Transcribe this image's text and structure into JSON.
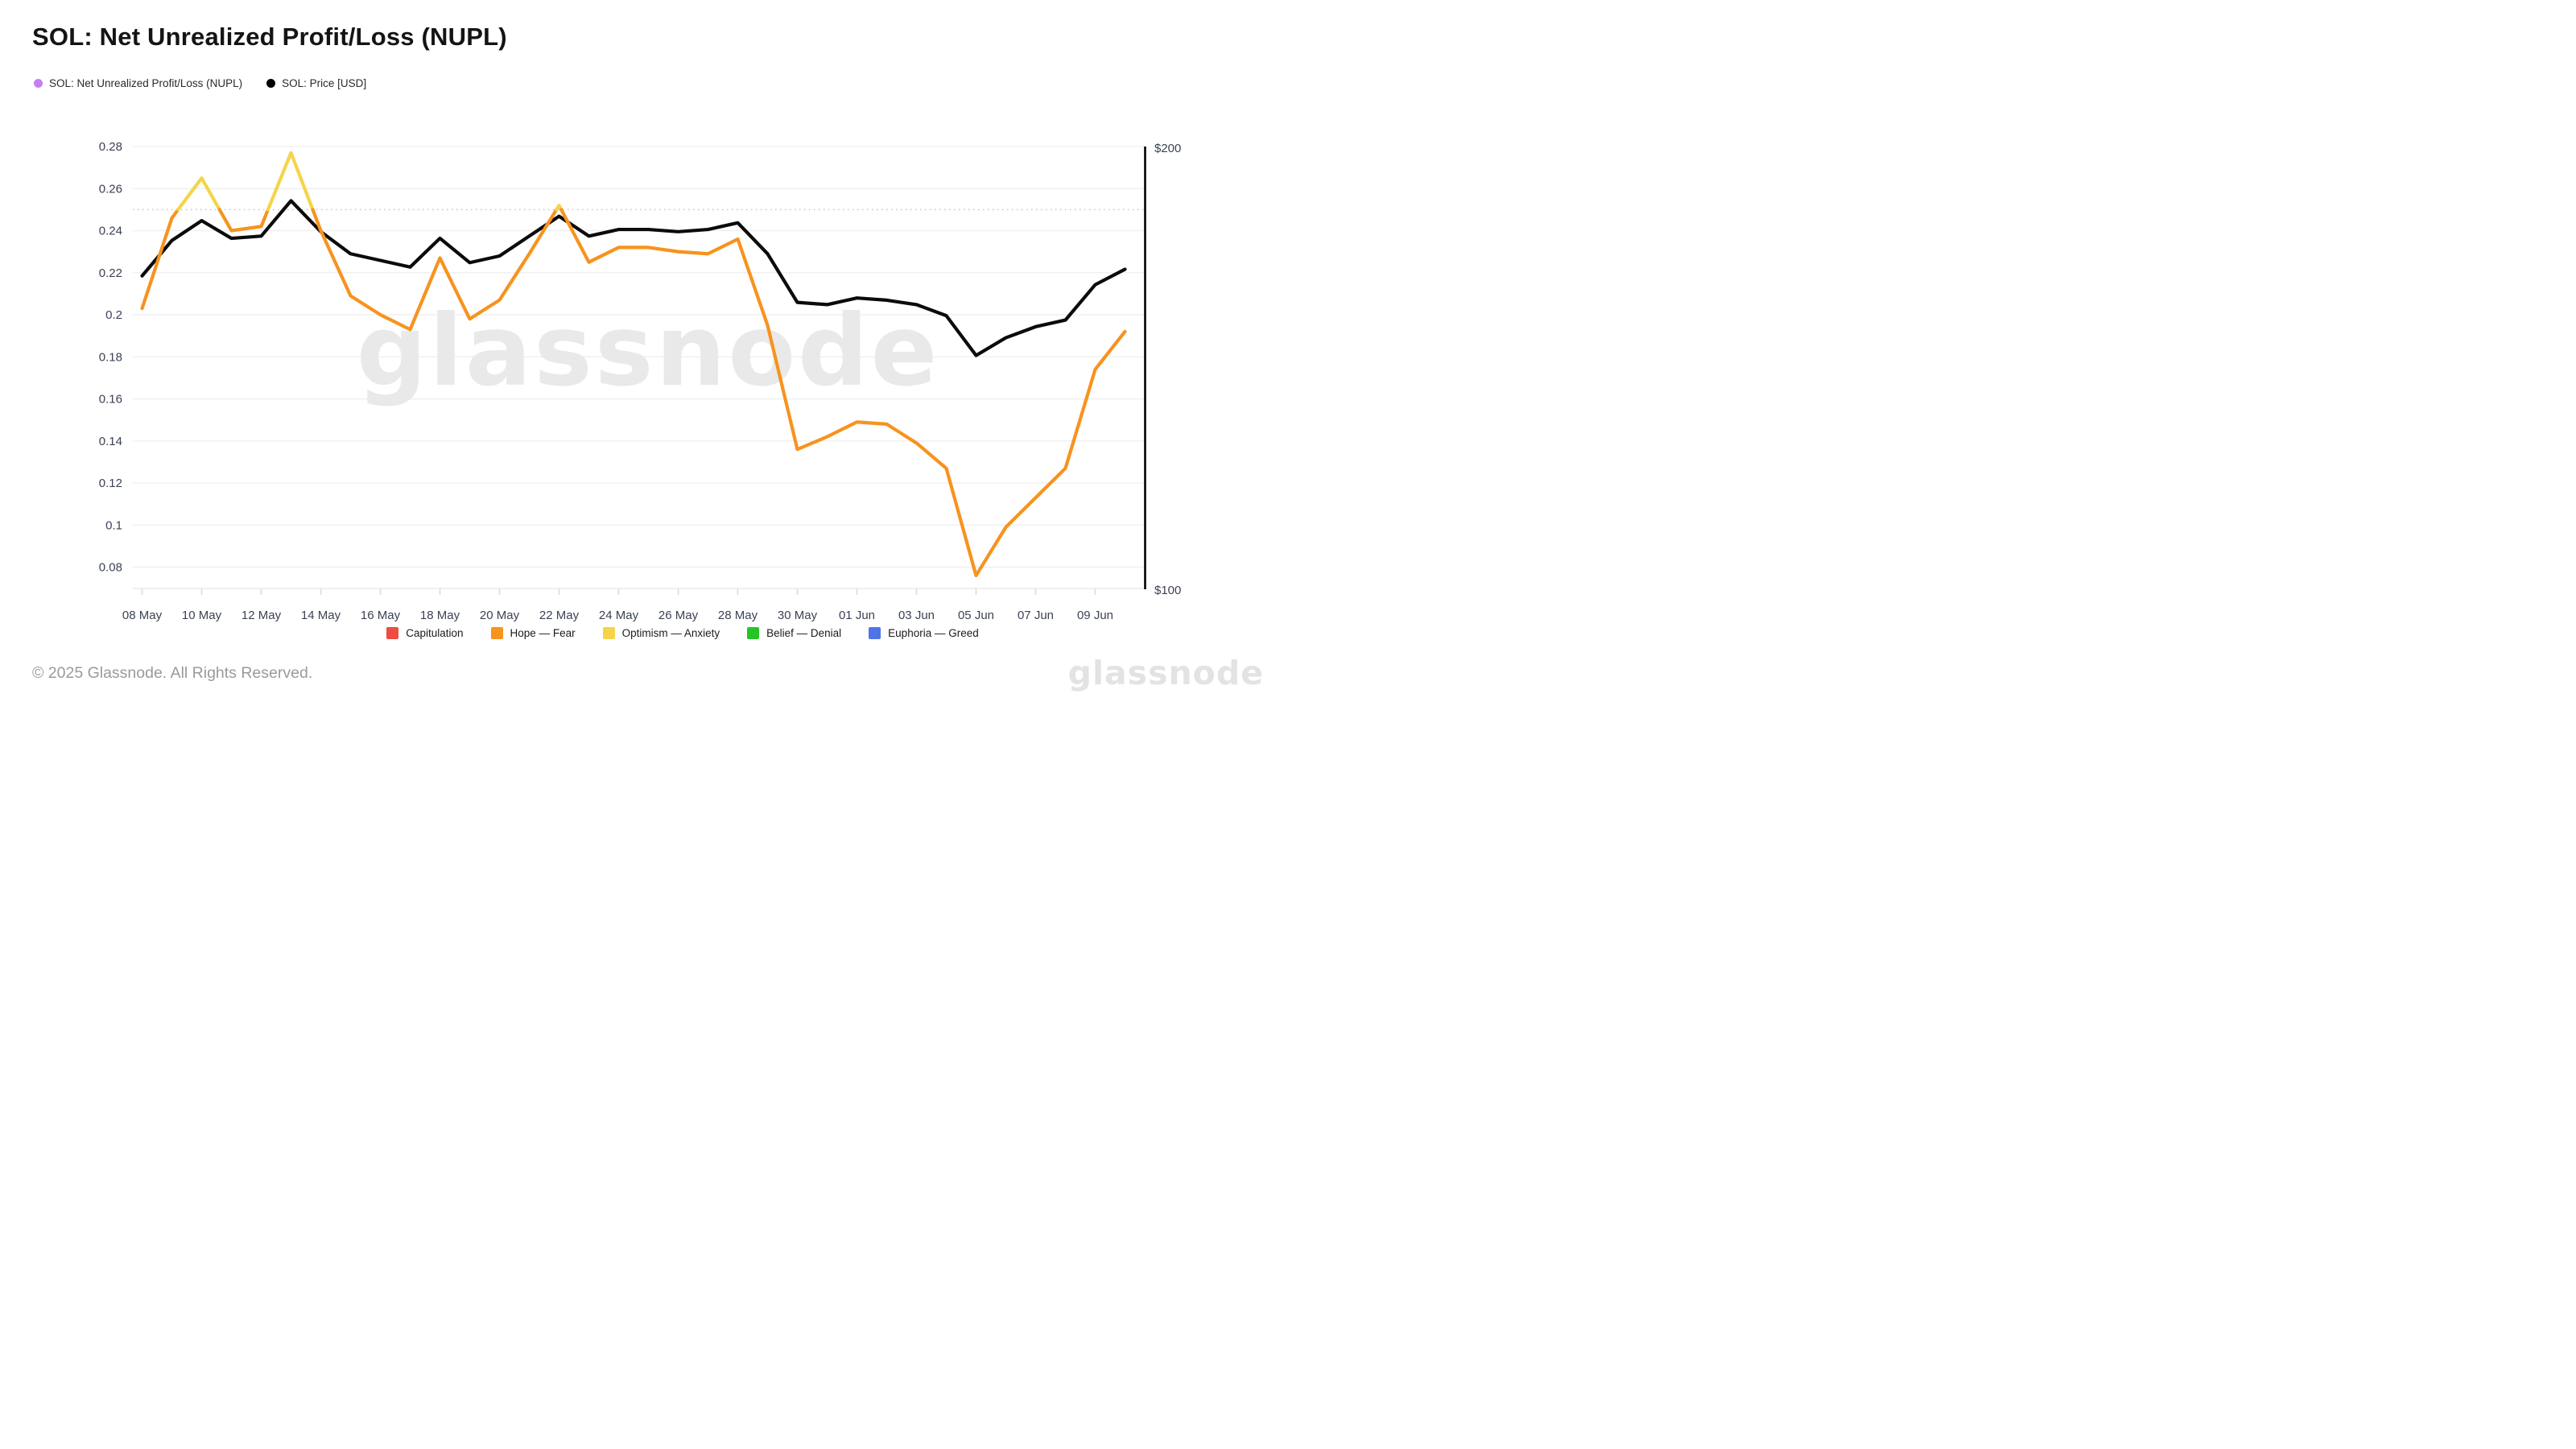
{
  "page": {
    "title": "SOL: Net Unrealized Profit/Loss (NUPL)"
  },
  "legend_top": [
    {
      "label": "SOL: Net Unrealized Profit/Loss (NUPL)",
      "color": "#C77EF2"
    },
    {
      "label": "SOL: Price [USD]",
      "color": "#000000"
    }
  ],
  "chart_data": {
    "type": "line",
    "title": "SOL: Net Unrealized Profit/Loss (NUPL)",
    "grid": "horizontal",
    "legend_position": "bottom",
    "watermark": "glassnode",
    "categories": [
      "08 May",
      "09 May",
      "10 May",
      "11 May",
      "12 May",
      "13 May",
      "14 May",
      "15 May",
      "16 May",
      "17 May",
      "18 May",
      "19 May",
      "20 May",
      "21 May",
      "22 May",
      "23 May",
      "24 May",
      "25 May",
      "26 May",
      "27 May",
      "28 May",
      "29 May",
      "30 May",
      "31 May",
      "01 Jun",
      "02 Jun",
      "03 Jun",
      "04 Jun",
      "05 Jun",
      "06 Jun",
      "07 Jun",
      "08 Jun",
      "09 Jun",
      "10 Jun"
    ],
    "x_tick_labels": [
      "08 May",
      "10 May",
      "12 May",
      "14 May",
      "16 May",
      "18 May",
      "20 May",
      "22 May",
      "24 May",
      "26 May",
      "28 May",
      "30 May",
      "01 Jun",
      "03 Jun",
      "05 Jun",
      "07 Jun",
      "09 Jun"
    ],
    "y_left": {
      "min": 0.08,
      "max": 0.28,
      "tick_labels": [
        "0.28",
        "0.26",
        "0.24",
        "0.22",
        "0.2",
        "0.18",
        "0.16",
        "0.14",
        "0.12",
        "0.1",
        "0.08"
      ]
    },
    "y_right": {
      "min": 100,
      "max": 200,
      "tick_labels": [
        "$200",
        "$100"
      ]
    },
    "threshold": {
      "value": 0.25,
      "style": "dotted"
    },
    "series": [
      {
        "name": "SOL: Net Unrealized Profit/Loss (NUPL)",
        "axis": "left",
        "color": "#F7931E",
        "color_above_threshold": "#F5D44A",
        "values": [
          0.203,
          0.246,
          0.265,
          0.24,
          0.242,
          0.277,
          0.24,
          0.209,
          0.2,
          0.193,
          0.227,
          0.198,
          0.207,
          0.229,
          0.252,
          0.225,
          0.232,
          0.232,
          0.23,
          0.229,
          0.236,
          0.195,
          0.136,
          0.142,
          0.149,
          0.148,
          0.139,
          0.127,
          0.076,
          0.099,
          0.113,
          0.127,
          0.174,
          0.192
        ]
      },
      {
        "name": "SOL: Price [USD]",
        "axis": "right",
        "color": "#0b0b0b",
        "values": [
          171,
          179,
          183.5,
          179.5,
          180,
          188,
          181,
          176,
          174.5,
          173,
          179.5,
          174,
          175.5,
          180,
          184.5,
          180,
          181.5,
          181.5,
          181,
          181.5,
          183,
          176,
          165,
          164.5,
          166,
          165.5,
          164.5,
          162,
          153,
          157,
          159.5,
          161,
          169,
          172.5
        ]
      }
    ],
    "bands_legend": [
      "Capitulation",
      "Hope — Fear",
      "Optimism — Anxiety",
      "Belief — Denial",
      "Euphoria — Greed"
    ]
  },
  "legend_bottom": [
    {
      "label": "Capitulation",
      "color": "#EE4B42"
    },
    {
      "label": "Hope — Fear",
      "color": "#F7931E"
    },
    {
      "label": "Optimism — Anxiety",
      "color": "#F5D44A"
    },
    {
      "label": "Belief — Denial",
      "color": "#26C426"
    },
    {
      "label": "Euphoria — Greed",
      "color": "#4E74E8"
    }
  ],
  "footer": {
    "copyright": "© 2025 Glassnode. All Rights Reserved.",
    "brand": "glassnode"
  }
}
